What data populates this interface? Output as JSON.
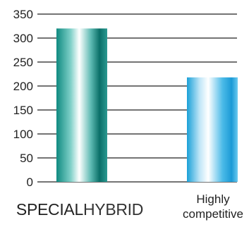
{
  "chart_data": {
    "type": "bar",
    "categories": [
      {
        "parts": [
          "SPECIAL",
          "HYBRID"
        ]
      },
      {
        "lines": [
          "Highly",
          "competitive"
        ]
      }
    ],
    "values": [
      320,
      218
    ],
    "ylim": [
      0,
      350
    ],
    "yticks": [
      0,
      50,
      100,
      150,
      200,
      250,
      300,
      350
    ],
    "grid": true,
    "bar_colors": [
      {
        "edge": "#0f8a80",
        "mid": "#ffffff",
        "dark": "#0a6f68"
      },
      {
        "edge": "#1aa0d8",
        "mid": "#ffffff",
        "dark": "#1b9ad6"
      }
    ]
  }
}
